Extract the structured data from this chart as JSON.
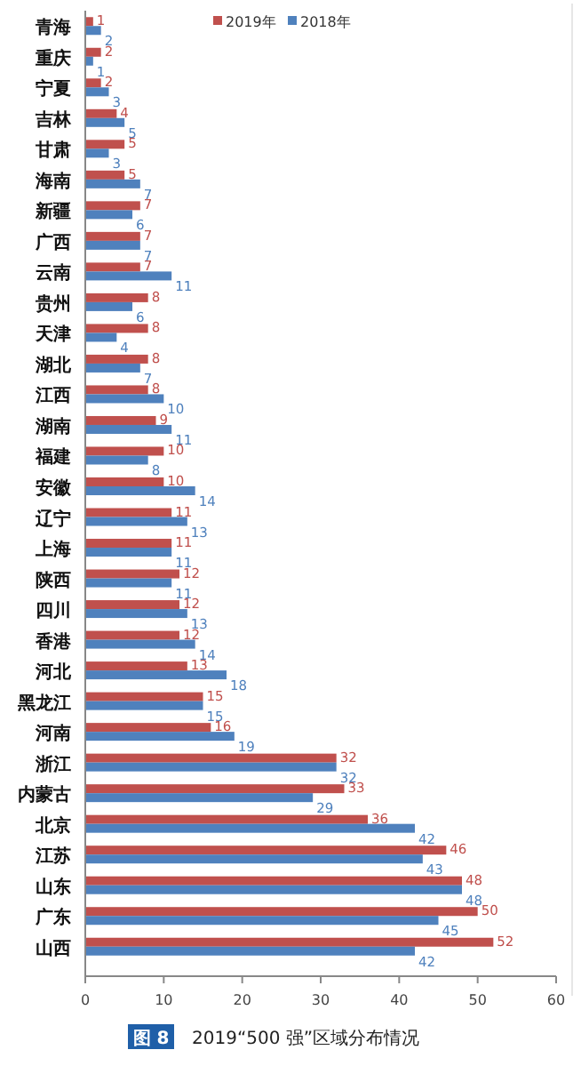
{
  "chart_data": {
    "type": "bar",
    "orientation": "horizontal",
    "title": "2019“500 强”区域分布情况",
    "annotations": [
      "图 8"
    ],
    "categories": [
      "青海",
      "重庆",
      "宁夏",
      "吉林",
      "甘肃",
      "海南",
      "新疆",
      "广西",
      "云南",
      "贵州",
      "天津",
      "湖北",
      "江西",
      "湖南",
      "福建",
      "安徽",
      "辽宁",
      "上海",
      "陕西",
      "四川",
      "香港",
      "河北",
      "黑龙江",
      "河南",
      "浙江",
      "内蒙古",
      "北京",
      "江苏",
      "山东",
      "广东",
      "山西"
    ],
    "series": [
      {
        "name": "2019年",
        "color": "#c0504d",
        "values": [
          1,
          2,
          2,
          4,
          5,
          5,
          7,
          7,
          7,
          8,
          8,
          8,
          8,
          9,
          10,
          10,
          11,
          11,
          12,
          12,
          12,
          13,
          15,
          16,
          32,
          33,
          36,
          46,
          48,
          50,
          52
        ]
      },
      {
        "name": "2018年",
        "color": "#4f81bd",
        "values": [
          2,
          1,
          3,
          5,
          3,
          7,
          6,
          7,
          11,
          6,
          4,
          7,
          10,
          11,
          8,
          14,
          13,
          11,
          11,
          13,
          14,
          18,
          15,
          19,
          32,
          29,
          42,
          43,
          48,
          45,
          42
        ]
      }
    ],
    "xlim": [
      0,
      60
    ],
    "xticks": [
      0,
      10,
      20,
      30,
      40,
      50,
      60
    ],
    "data_labels": true,
    "legend": "top",
    "grid": false
  }
}
